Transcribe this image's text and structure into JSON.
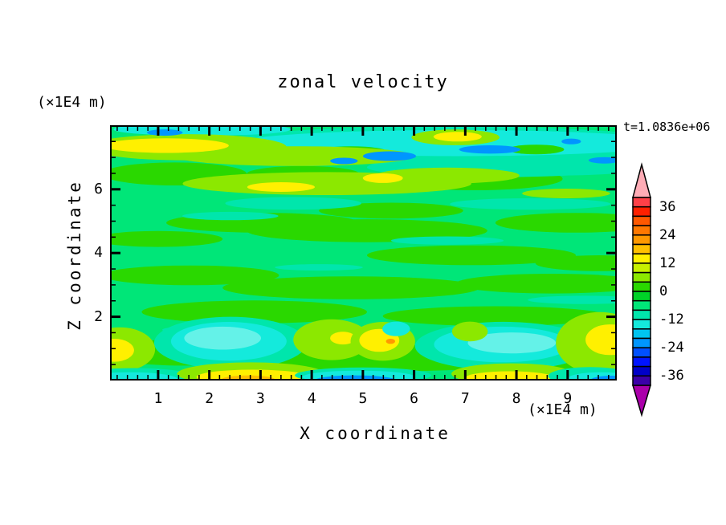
{
  "chart_data": {
    "type": "contour",
    "title": "zonal velocity",
    "time_label": "t=1.0836e+06",
    "x_axis": {
      "label": "X coordinate",
      "unit": "(×1E4 m)",
      "major_ticks": [
        1,
        2,
        3,
        4,
        5,
        6,
        7,
        8,
        9
      ],
      "minor_tick_step": 0.2,
      "range": [
        0.06,
        9.96
      ]
    },
    "z_axis": {
      "label": "Z coordinate",
      "unit": "(×1E4 m)",
      "major_ticks": [
        2,
        4,
        6
      ],
      "minor_tick_step": 0.5,
      "range": [
        0,
        8.01
      ]
    },
    "colorbar": {
      "tick_labels": [
        "36",
        "24",
        "12",
        "0",
        "-12",
        "-24",
        "-36"
      ],
      "tick_values": [
        36,
        24,
        12,
        0,
        -12,
        -24,
        -36
      ],
      "levels_min": -40,
      "levels_max": 40,
      "level_step": 4,
      "segment_colors_top_to_bottom": [
        "#FF4048",
        "#FF2000",
        "#FF5800",
        "#FF7800",
        "#FF9800",
        "#FFC000",
        "#FFF000",
        "#C8F000",
        "#8CE800",
        "#2AD800",
        "#00D228",
        "#00E678",
        "#00E6AC",
        "#14EADC",
        "#00C4F0",
        "#0096FF",
        "#0050FF",
        "#0014FF",
        "#0000C8",
        "#3C00A8"
      ],
      "arrow_top_color": "#FFACB6",
      "arrow_bottom_color": "#AA00AA"
    },
    "background_value_color": "#00E678",
    "palette": {
      "GG": "#2AD800",
      "CH": "#8CE800",
      "Y": "#FFF000",
      "A": "#FFC000",
      "O": "#FF9800",
      "TQ": "#00E6AC",
      "CY": "#14EADC",
      "PC": "#64F2E8",
      "BL": "#0096FF",
      "DB": "#0060FF"
    },
    "regions": [
      [
        1.32,
        6.48,
        1.41,
        0.36,
        "GG"
      ],
      [
        3.04,
        4.95,
        1.88,
        0.31,
        "GG"
      ],
      [
        1.0,
        4.44,
        1.26,
        0.25,
        "GG"
      ],
      [
        5.08,
        4.7,
        2.35,
        0.36,
        "GG"
      ],
      [
        7.17,
        6.33,
        1.73,
        0.36,
        "GG"
      ],
      [
        9.16,
        4.95,
        1.57,
        0.31,
        "GG"
      ],
      [
        7.12,
        3.93,
        2.04,
        0.31,
        "GG"
      ],
      [
        1.63,
        3.3,
        1.73,
        0.31,
        "GG"
      ],
      [
        4.77,
        2.91,
        2.51,
        0.36,
        "GG"
      ],
      [
        8.69,
        3.04,
        1.88,
        0.31,
        "GG"
      ],
      [
        2.88,
        2.15,
        2.2,
        0.36,
        "GG"
      ],
      [
        7.59,
        2.02,
        2.2,
        0.31,
        "GG"
      ],
      [
        1.47,
        0.88,
        1.57,
        0.41,
        "GG"
      ],
      [
        9.63,
        3.68,
        1.26,
        0.25,
        "GG"
      ],
      [
        5.55,
        0.7,
        2.82,
        0.41,
        "GG"
      ],
      [
        8.85,
        0.54,
        1.88,
        0.33,
        "GG"
      ],
      [
        3.83,
        6.48,
        1.1,
        0.25,
        "GG"
      ],
      [
        5.55,
        5.33,
        1.41,
        0.25,
        "GG"
      ],
      [
        6.65,
        7.37,
        4.71,
        0.61,
        "TQ"
      ],
      [
        8.85,
        6.94,
        2.2,
        0.51,
        "TQ"
      ],
      [
        7.59,
        6.69,
        2.51,
        0.31,
        "TQ"
      ],
      [
        3.64,
        5.56,
        1.33,
        0.2,
        "TQ"
      ],
      [
        8.27,
        5.54,
        1.57,
        0.18,
        "TQ"
      ],
      [
        2.41,
        5.16,
        0.94,
        0.13,
        "TQ"
      ],
      [
        6.65,
        4.39,
        1.1,
        0.13,
        "TQ"
      ],
      [
        4.14,
        3.55,
        0.86,
        0.1,
        "TQ"
      ],
      [
        9.32,
        2.53,
        1.1,
        0.13,
        "TQ"
      ],
      [
        1.94,
        1.59,
        0.86,
        0.13,
        "TQ"
      ],
      [
        6.81,
        7.45,
        4.24,
        0.41,
        "CY"
      ],
      [
        1.86,
        7.88,
        1.73,
        0.2,
        "CY"
      ],
      [
        4.77,
        7.17,
        0.71,
        0.18,
        "GG"
      ],
      [
        8.38,
        7.25,
        0.55,
        0.15,
        "GG"
      ],
      [
        1.55,
        7.32,
        1.96,
        0.41,
        "CH"
      ],
      [
        3.67,
        7.04,
        2.35,
        0.31,
        "CH"
      ],
      [
        4.3,
        6.18,
        2.82,
        0.36,
        "CH"
      ],
      [
        6.65,
        6.43,
        1.41,
        0.25,
        "CH"
      ],
      [
        6.81,
        7.63,
        0.86,
        0.25,
        "CH"
      ],
      [
        8.97,
        5.87,
        0.86,
        0.15,
        "CH"
      ],
      [
        1.16,
        7.37,
        1.22,
        0.23,
        "Y"
      ],
      [
        3.4,
        6.07,
        0.66,
        0.15,
        "Y"
      ],
      [
        5.39,
        6.35,
        0.39,
        0.15,
        "Y"
      ],
      [
        6.85,
        7.65,
        0.47,
        0.15,
        "Y"
      ],
      [
        2.41,
        1.18,
        1.49,
        0.82,
        "TQ"
      ],
      [
        2.38,
        1.23,
        1.13,
        0.61,
        "CY"
      ],
      [
        2.26,
        1.33,
        0.75,
        0.36,
        "PC"
      ],
      [
        0.25,
        0.98,
        0.69,
        0.69,
        "CH"
      ],
      [
        0.15,
        0.95,
        0.38,
        0.36,
        "Y"
      ],
      [
        4.39,
        1.28,
        0.75,
        0.64,
        "CH"
      ],
      [
        4.61,
        1.33,
        0.25,
        0.2,
        "Y"
      ],
      [
        5.39,
        1.23,
        0.63,
        0.61,
        "CH"
      ],
      [
        5.32,
        1.26,
        0.39,
        0.36,
        "Y"
      ],
      [
        5.54,
        1.23,
        0.09,
        0.08,
        "O"
      ],
      [
        7.75,
        1.08,
        1.73,
        0.76,
        "TQ"
      ],
      [
        7.72,
        1.13,
        1.33,
        0.56,
        "CY"
      ],
      [
        7.91,
        1.18,
        0.86,
        0.33,
        "PC"
      ],
      [
        5.65,
        1.62,
        0.27,
        0.23,
        "CY"
      ],
      [
        7.09,
        1.54,
        0.35,
        0.31,
        "CH"
      ],
      [
        9.63,
        1.18,
        0.86,
        0.97,
        "CH"
      ],
      [
        9.82,
        1.28,
        0.47,
        0.48,
        "Y"
      ],
      [
        0.53,
        0.11,
        1.18,
        0.28,
        "TQ"
      ],
      [
        0.45,
        0.03,
        0.94,
        0.23,
        "CY"
      ],
      [
        2.81,
        0.21,
        1.44,
        0.36,
        "CH"
      ],
      [
        2.85,
        0.11,
        1.1,
        0.23,
        "Y"
      ],
      [
        2.76,
        0.03,
        0.52,
        0.13,
        "A"
      ],
      [
        5.0,
        0.16,
        1.33,
        0.25,
        "TQ"
      ],
      [
        4.92,
        0.11,
        1.1,
        0.2,
        "CY"
      ],
      [
        4.85,
        0.01,
        0.78,
        0.15,
        "BL"
      ],
      [
        7.91,
        0.21,
        1.18,
        0.33,
        "CH"
      ],
      [
        7.87,
        0.09,
        0.86,
        0.2,
        "Y"
      ],
      [
        9.44,
        0.14,
        0.82,
        0.28,
        "TQ"
      ],
      [
        9.66,
        0.06,
        0.66,
        0.2,
        "CY"
      ],
      [
        9.85,
        0.0,
        0.41,
        0.15,
        "BL"
      ],
      [
        9.96,
        -0.05,
        0.22,
        0.1,
        "DB"
      ],
      [
        5.52,
        7.04,
        0.52,
        0.15,
        "BL"
      ],
      [
        7.48,
        7.25,
        0.6,
        0.13,
        "BL"
      ],
      [
        9.07,
        7.5,
        0.19,
        0.09,
        "BL"
      ],
      [
        4.63,
        6.89,
        0.27,
        0.1,
        "BL"
      ],
      [
        9.72,
        6.91,
        0.31,
        0.1,
        "BL"
      ],
      [
        1.13,
        7.78,
        0.35,
        0.1,
        "BL"
      ]
    ]
  }
}
